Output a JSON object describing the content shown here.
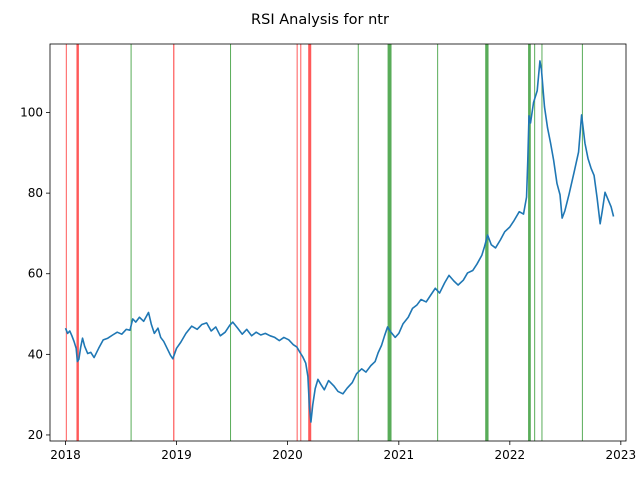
{
  "chart_data": {
    "type": "line",
    "title": "RSI Analysis for ntr",
    "xlabel": "",
    "ylabel": "",
    "x_range": [
      "2017-11-11",
      "2023-01-18"
    ],
    "ylim": [
      18.5,
      117
    ],
    "x_ticks": [
      "2018",
      "2019",
      "2020",
      "2021",
      "2022",
      "2023"
    ],
    "y_ticks": [
      20,
      40,
      60,
      80,
      100
    ],
    "grid": false,
    "legend": "none",
    "colors": {
      "line": "#1f77b4",
      "oversold_band": "#ff0000",
      "overbought_band": "#008000",
      "axis": "#000000"
    },
    "series": [
      {
        "values": [
          [
            "2018-01-01",
            46.5
          ],
          [
            "2018-01-08",
            45.2
          ],
          [
            "2018-01-15",
            45.8
          ],
          [
            "2018-01-22",
            44.6
          ],
          [
            "2018-01-29",
            43.2
          ],
          [
            "2018-02-05",
            41.5
          ],
          [
            "2018-02-09",
            38.2
          ],
          [
            "2018-02-14",
            38.8
          ],
          [
            "2018-02-20",
            41.8
          ],
          [
            "2018-02-26",
            44.0
          ],
          [
            "2018-03-05",
            42.0
          ],
          [
            "2018-03-15",
            40.2
          ],
          [
            "2018-03-25",
            40.5
          ],
          [
            "2018-04-05",
            39.2
          ],
          [
            "2018-04-20",
            41.5
          ],
          [
            "2018-05-05",
            43.6
          ],
          [
            "2018-05-20",
            44.0
          ],
          [
            "2018-06-05",
            44.8
          ],
          [
            "2018-06-20",
            45.5
          ],
          [
            "2018-07-05",
            45.0
          ],
          [
            "2018-07-20",
            46.2
          ],
          [
            "2018-08-01",
            46.0
          ],
          [
            "2018-08-10",
            48.8
          ],
          [
            "2018-08-20",
            48.0
          ],
          [
            "2018-09-01",
            49.2
          ],
          [
            "2018-09-15",
            48.2
          ],
          [
            "2018-10-01",
            50.4
          ],
          [
            "2018-10-10",
            47.5
          ],
          [
            "2018-10-20",
            45.2
          ],
          [
            "2018-11-01",
            46.5
          ],
          [
            "2018-11-10",
            44.2
          ],
          [
            "2018-11-20",
            43.2
          ],
          [
            "2018-12-01",
            41.5
          ],
          [
            "2018-12-12",
            39.8
          ],
          [
            "2018-12-20",
            38.9
          ],
          [
            "2019-01-01",
            41.5
          ],
          [
            "2019-01-15",
            43.0
          ],
          [
            "2019-02-01",
            45.2
          ],
          [
            "2019-02-20",
            47.0
          ],
          [
            "2019-03-10",
            46.2
          ],
          [
            "2019-03-25",
            47.4
          ],
          [
            "2019-04-10",
            47.8
          ],
          [
            "2019-04-25",
            45.8
          ],
          [
            "2019-05-10",
            46.8
          ],
          [
            "2019-05-25",
            44.6
          ],
          [
            "2019-06-10",
            45.5
          ],
          [
            "2019-06-25",
            47.2
          ],
          [
            "2019-07-05",
            48.0
          ],
          [
            "2019-07-20",
            46.6
          ],
          [
            "2019-08-05",
            45.0
          ],
          [
            "2019-08-20",
            46.2
          ],
          [
            "2019-09-05",
            44.6
          ],
          [
            "2019-09-20",
            45.5
          ],
          [
            "2019-10-05",
            44.8
          ],
          [
            "2019-10-20",
            45.2
          ],
          [
            "2019-11-05",
            44.6
          ],
          [
            "2019-11-20",
            44.2
          ],
          [
            "2019-12-05",
            43.4
          ],
          [
            "2019-12-20",
            44.2
          ],
          [
            "2020-01-05",
            43.6
          ],
          [
            "2020-01-20",
            42.4
          ],
          [
            "2020-02-01",
            41.8
          ],
          [
            "2020-02-10",
            40.6
          ],
          [
            "2020-02-20",
            39.4
          ],
          [
            "2020-03-01",
            37.8
          ],
          [
            "2020-03-08",
            34.5
          ],
          [
            "2020-03-13",
            27.0
          ],
          [
            "2020-03-18",
            23.2
          ],
          [
            "2020-03-24",
            27.5
          ],
          [
            "2020-04-01",
            31.5
          ],
          [
            "2020-04-10",
            33.8
          ],
          [
            "2020-04-20",
            32.5
          ],
          [
            "2020-05-01",
            31.2
          ],
          [
            "2020-05-15",
            33.5
          ],
          [
            "2020-06-01",
            32.2
          ],
          [
            "2020-06-15",
            30.8
          ],
          [
            "2020-07-01",
            30.2
          ],
          [
            "2020-07-15",
            31.6
          ],
          [
            "2020-08-01",
            33.0
          ],
          [
            "2020-08-15",
            35.2
          ],
          [
            "2020-09-01",
            36.4
          ],
          [
            "2020-09-15",
            35.6
          ],
          [
            "2020-10-01",
            37.2
          ],
          [
            "2020-10-15",
            38.2
          ],
          [
            "2020-10-25",
            40.4
          ],
          [
            "2020-11-05",
            42.2
          ],
          [
            "2020-11-15",
            44.6
          ],
          [
            "2020-11-25",
            46.8
          ],
          [
            "2020-12-05",
            45.6
          ],
          [
            "2020-12-20",
            44.2
          ],
          [
            "2021-01-01",
            45.2
          ],
          [
            "2021-01-15",
            47.6
          ],
          [
            "2021-02-01",
            49.2
          ],
          [
            "2021-02-15",
            51.4
          ],
          [
            "2021-03-01",
            52.2
          ],
          [
            "2021-03-15",
            53.6
          ],
          [
            "2021-04-01",
            53.0
          ],
          [
            "2021-04-15",
            54.6
          ],
          [
            "2021-05-01",
            56.4
          ],
          [
            "2021-05-15",
            55.2
          ],
          [
            "2021-06-01",
            57.8
          ],
          [
            "2021-06-15",
            59.6
          ],
          [
            "2021-07-01",
            58.2
          ],
          [
            "2021-07-15",
            57.2
          ],
          [
            "2021-08-01",
            58.4
          ],
          [
            "2021-08-15",
            60.2
          ],
          [
            "2021-09-01",
            60.8
          ],
          [
            "2021-09-15",
            62.4
          ],
          [
            "2021-10-01",
            64.6
          ],
          [
            "2021-10-10",
            66.8
          ],
          [
            "2021-10-20",
            69.6
          ],
          [
            "2021-11-01",
            67.2
          ],
          [
            "2021-11-15",
            66.4
          ],
          [
            "2021-12-01",
            68.4
          ],
          [
            "2021-12-15",
            70.4
          ],
          [
            "2022-01-01",
            71.6
          ],
          [
            "2022-01-15",
            73.2
          ],
          [
            "2022-02-01",
            75.4
          ],
          [
            "2022-02-15",
            74.8
          ],
          [
            "2022-02-25",
            79.0
          ],
          [
            "2022-03-01",
            88.0
          ],
          [
            "2022-03-05",
            99.2
          ],
          [
            "2022-03-10",
            97.4
          ],
          [
            "2022-03-20",
            102.5
          ],
          [
            "2022-04-01",
            105.4
          ],
          [
            "2022-04-10",
            112.8
          ],
          [
            "2022-04-15",
            110.6
          ],
          [
            "2022-04-25",
            101.4
          ],
          [
            "2022-05-05",
            96.2
          ],
          [
            "2022-05-15",
            92.4
          ],
          [
            "2022-05-25",
            88.2
          ],
          [
            "2022-06-05",
            82.4
          ],
          [
            "2022-06-15",
            79.6
          ],
          [
            "2022-06-22",
            73.8
          ],
          [
            "2022-07-01",
            75.6
          ],
          [
            "2022-07-15",
            79.8
          ],
          [
            "2022-08-01",
            85.4
          ],
          [
            "2022-08-15",
            90.2
          ],
          [
            "2022-08-25",
            99.4
          ],
          [
            "2022-09-05",
            92.4
          ],
          [
            "2022-09-15",
            88.6
          ],
          [
            "2022-09-25",
            86.2
          ],
          [
            "2022-10-05",
            84.4
          ],
          [
            "2022-10-15",
            78.8
          ],
          [
            "2022-10-25",
            72.4
          ],
          [
            "2022-11-01",
            75.6
          ],
          [
            "2022-11-10",
            80.2
          ],
          [
            "2022-11-20",
            78.4
          ],
          [
            "2022-11-30",
            76.6
          ],
          [
            "2022-12-08",
            74.2
          ]
        ]
      }
    ],
    "oversold_bands": [
      [
        "2018-01-02",
        "2018-01-02"
      ],
      [
        "2018-02-06",
        "2018-02-13"
      ],
      [
        "2018-12-21",
        "2018-12-24"
      ],
      [
        "2020-01-31",
        "2020-01-31"
      ],
      [
        "2020-02-12",
        "2020-02-12"
      ],
      [
        "2020-03-09",
        "2020-03-18"
      ]
    ],
    "overbought_bands": [
      [
        "2018-08-03",
        "2018-08-03"
      ],
      [
        "2019-06-26",
        "2019-06-26"
      ],
      [
        "2020-08-19",
        "2020-08-21"
      ],
      [
        "2020-11-25",
        "2020-12-07"
      ],
      [
        "2021-05-07",
        "2021-05-07"
      ],
      [
        "2021-10-12",
        "2021-10-22"
      ],
      [
        "2022-03-02",
        "2022-03-10"
      ],
      [
        "2022-03-22",
        "2022-03-22"
      ],
      [
        "2022-04-15",
        "2022-04-15"
      ],
      [
        "2022-08-26",
        "2022-08-26"
      ]
    ]
  }
}
